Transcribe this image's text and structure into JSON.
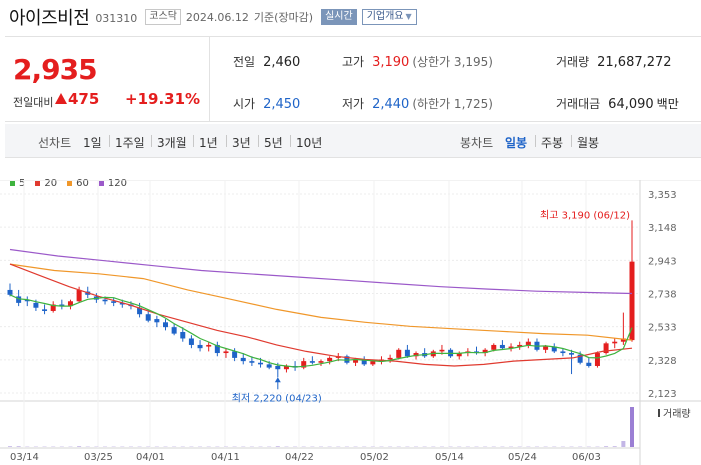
{
  "header": {
    "name": "아이즈비전",
    "code": "031310",
    "market": "코스닥",
    "date": "2024.06.12",
    "basis": "기준(장마감)",
    "realtime_label": "실시간",
    "overview_label": "기업개요"
  },
  "quote": {
    "price": "2,935",
    "change_label": "전일대비",
    "change": "475",
    "change_rate": "+19.31%",
    "prev_close_label": "전일",
    "prev_close": "2,460",
    "high_label": "고가",
    "high": "3,190",
    "upper_limit": "(상한가 3,195)",
    "volume_label": "거래량",
    "volume": "21,687,272",
    "open_label": "시가",
    "open": "2,450",
    "low_label": "저가",
    "low": "2,440",
    "lower_limit": "(하한가 1,725)",
    "amount_label": "거래대금",
    "amount": "64,090",
    "amount_unit": "백만"
  },
  "period_bar": {
    "line_chart_label": "선차트",
    "periods": [
      "1일",
      "1주일",
      "3개월",
      "1년",
      "3년",
      "5년",
      "10년"
    ],
    "candle_chart_label": "봉차트",
    "candle_periods": [
      "일봉",
      "주봉",
      "월봉"
    ],
    "active_candle_period": "일봉"
  },
  "colors": {
    "up": "#e41e1e",
    "down": "#1f64c8",
    "ma5": "#3eb33e",
    "ma20": "#e03a2f",
    "ma60": "#f0972a",
    "ma120": "#9b59c9"
  },
  "chart_data": {
    "type": "candlestick",
    "legend": [
      {
        "name": "5",
        "color": "#3eb33e"
      },
      {
        "name": "20",
        "color": "#e03a2f"
      },
      {
        "name": "60",
        "color": "#f0972a"
      },
      {
        "name": "120",
        "color": "#9b59c9"
      }
    ],
    "ylim": [
      2123,
      3353
    ],
    "y_ticks": [
      "3,353",
      "3,148",
      "2,943",
      "2,738",
      "2,533",
      "2,328",
      "2,123"
    ],
    "x_ticks": [
      "03/14",
      "03/25",
      "04/01",
      "04/11",
      "04/22",
      "05/02",
      "05/14",
      "05/24",
      "06/03"
    ],
    "annotations": {
      "high": "최고 3,190 (06/12)",
      "low": "최저 2,220 (04/23)"
    },
    "volume_label": "거래량",
    "candles": [
      [
        2760,
        2800,
        2720,
        2730
      ],
      [
        2720,
        2760,
        2660,
        2680
      ],
      [
        2700,
        2720,
        2660,
        2690
      ],
      [
        2680,
        2700,
        2630,
        2650
      ],
      [
        2640,
        2670,
        2610,
        2630
      ],
      [
        2630,
        2690,
        2620,
        2670
      ],
      [
        2670,
        2700,
        2640,
        2660
      ],
      [
        2660,
        2700,
        2640,
        2690
      ],
      [
        2690,
        2780,
        2680,
        2760
      ],
      [
        2750,
        2780,
        2710,
        2730
      ],
      [
        2720,
        2740,
        2680,
        2700
      ],
      [
        2700,
        2720,
        2670,
        2690
      ],
      [
        2690,
        2710,
        2660,
        2680
      ],
      [
        2680,
        2700,
        2650,
        2670
      ],
      [
        2670,
        2690,
        2640,
        2660
      ],
      [
        2650,
        2680,
        2590,
        2610
      ],
      [
        2610,
        2630,
        2560,
        2570
      ],
      [
        2580,
        2600,
        2530,
        2560
      ],
      [
        2560,
        2580,
        2510,
        2530
      ],
      [
        2530,
        2550,
        2480,
        2490
      ],
      [
        2500,
        2530,
        2440,
        2460
      ],
      [
        2460,
        2480,
        2400,
        2420
      ],
      [
        2420,
        2450,
        2380,
        2400
      ],
      [
        2410,
        2440,
        2380,
        2420
      ],
      [
        2420,
        2440,
        2350,
        2370
      ],
      [
        2370,
        2400,
        2340,
        2380
      ],
      [
        2380,
        2400,
        2320,
        2340
      ],
      [
        2340,
        2370,
        2300,
        2320
      ],
      [
        2320,
        2350,
        2290,
        2310
      ],
      [
        2310,
        2340,
        2280,
        2300
      ],
      [
        2300,
        2320,
        2270,
        2280
      ],
      [
        2290,
        2310,
        2220,
        2270
      ],
      [
        2270,
        2300,
        2250,
        2290
      ],
      [
        2290,
        2320,
        2260,
        2280
      ],
      [
        2280,
        2340,
        2270,
        2320
      ],
      [
        2320,
        2350,
        2300,
        2310
      ],
      [
        2310,
        2330,
        2290,
        2320
      ],
      [
        2320,
        2350,
        2300,
        2340
      ],
      [
        2340,
        2370,
        2320,
        2350
      ],
      [
        2350,
        2360,
        2300,
        2310
      ],
      [
        2310,
        2340,
        2290,
        2330
      ],
      [
        2330,
        2350,
        2290,
        2300
      ],
      [
        2300,
        2330,
        2290,
        2320
      ],
      [
        2320,
        2350,
        2300,
        2330
      ],
      [
        2330,
        2360,
        2310,
        2340
      ],
      [
        2340,
        2400,
        2330,
        2390
      ],
      [
        2390,
        2420,
        2340,
        2350
      ],
      [
        2350,
        2380,
        2330,
        2370
      ],
      [
        2370,
        2400,
        2340,
        2350
      ],
      [
        2350,
        2390,
        2340,
        2380
      ],
      [
        2380,
        2420,
        2360,
        2390
      ],
      [
        2390,
        2400,
        2340,
        2350
      ],
      [
        2350,
        2380,
        2330,
        2370
      ],
      [
        2370,
        2400,
        2350,
        2380
      ],
      [
        2380,
        2410,
        2360,
        2370
      ],
      [
        2370,
        2400,
        2350,
        2390
      ],
      [
        2390,
        2430,
        2380,
        2420
      ],
      [
        2420,
        2450,
        2390,
        2400
      ],
      [
        2400,
        2430,
        2380,
        2410
      ],
      [
        2410,
        2440,
        2390,
        2420
      ],
      [
        2420,
        2460,
        2400,
        2440
      ],
      [
        2440,
        2460,
        2380,
        2390
      ],
      [
        2390,
        2420,
        2370,
        2410
      ],
      [
        2410,
        2430,
        2370,
        2380
      ],
      [
        2380,
        2400,
        2350,
        2370
      ],
      [
        2370,
        2390,
        2240,
        2360
      ],
      [
        2360,
        2380,
        2300,
        2310
      ],
      [
        2310,
        2340,
        2280,
        2290
      ],
      [
        2290,
        2380,
        2280,
        2370
      ],
      [
        2370,
        2440,
        2360,
        2430
      ],
      [
        2430,
        2460,
        2400,
        2440
      ],
      [
        2440,
        2620,
        2420,
        2460
      ],
      [
        2450,
        3190,
        2440,
        2935
      ]
    ],
    "volumes": [
      0.02,
      0.02,
      0.01,
      0.01,
      0.01,
      0.01,
      0.01,
      0.01,
      0.02,
      0.01,
      0.01,
      0.01,
      0.01,
      0.01,
      0.01,
      0.01,
      0.01,
      0.01,
      0.01,
      0.01,
      0.01,
      0.01,
      0.01,
      0.01,
      0.01,
      0.01,
      0.01,
      0.01,
      0.01,
      0.01,
      0.01,
      0.02,
      0.01,
      0.01,
      0.01,
      0.01,
      0.01,
      0.01,
      0.01,
      0.01,
      0.01,
      0.01,
      0.01,
      0.01,
      0.01,
      0.01,
      0.01,
      0.01,
      0.01,
      0.01,
      0.01,
      0.01,
      0.01,
      0.01,
      0.01,
      0.01,
      0.01,
      0.01,
      0.01,
      0.01,
      0.01,
      0.01,
      0.01,
      0.01,
      0.01,
      0.01,
      0.01,
      0.01,
      0.01,
      0.02,
      0.02,
      0.15,
      1.0
    ],
    "ma120": [
      3010,
      2970,
      2940,
      2910,
      2880,
      2860,
      2840,
      2820,
      2800,
      2780,
      2765,
      2752,
      2745,
      2738
    ],
    "ma60": [
      2920,
      2880,
      2860,
      2830,
      2760,
      2700,
      2640,
      2590,
      2560,
      2535,
      2520,
      2505,
      2490,
      2480,
      2450
    ],
    "ma20": [
      2920,
      2850,
      2780,
      2720,
      2670,
      2610,
      2560,
      2510,
      2470,
      2420,
      2380,
      2350,
      2330,
      2320,
      2300,
      2290,
      2300,
      2320,
      2330,
      2340,
      2380,
      2400
    ]
  }
}
